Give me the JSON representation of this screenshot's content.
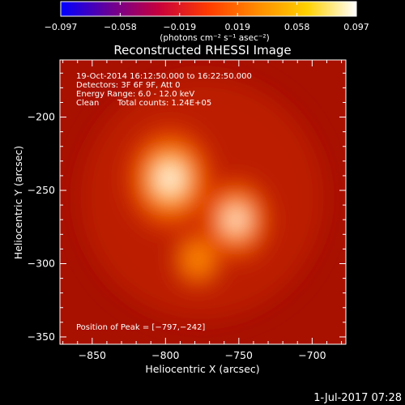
{
  "chart_data": {
    "type": "heatmap",
    "title": "Reconstructed RHESSI Image",
    "xlabel": "Heliocentric X (arcsec)",
    "ylabel": "Heliocentric Y (arcsec)",
    "xlim": [
      -872,
      -677
    ],
    "ylim": [
      -355,
      -161
    ],
    "x_ticks": [
      {
        "value": -850,
        "label": "−850"
      },
      {
        "value": -800,
        "label": "−800"
      },
      {
        "value": -750,
        "label": "−750"
      },
      {
        "value": -700,
        "label": "−700"
      }
    ],
    "y_ticks": [
      {
        "value": -200,
        "label": "−200"
      },
      {
        "value": -250,
        "label": "−250"
      },
      {
        "value": -300,
        "label": "−300"
      },
      {
        "value": -350,
        "label": "−350"
      }
    ],
    "colorbar": {
      "min": -0.097,
      "max": 0.097,
      "tick_values": [
        -0.097,
        -0.058,
        -0.019,
        0.019,
        0.058,
        0.097
      ],
      "tick_labels": [
        "−0.097",
        "−0.058",
        "−0.019",
        "0.019",
        "0.058",
        "0.097"
      ],
      "unit_label": "(photons cm⁻² s⁻¹ asec⁻²)",
      "colormap": [
        "#0000ff",
        "#6a0096",
        "#c8003c",
        "#ff3c00",
        "#ff8c00",
        "#ffd200",
        "#ffffff"
      ]
    },
    "annotations": {
      "time_range": "19-Oct-2014 16:12:50.000 to 16:22:50.000",
      "detectors": "Detectors: 3F 6F 9F, Att 0",
      "energy_range": "Energy Range: 6.0 - 12.0 keV",
      "clean": "Clean",
      "total_counts": "Total counts: 1.24E+05",
      "peak_position": "Position of Peak = [−797,−242]"
    },
    "sources": [
      {
        "x": -797,
        "y": -242,
        "peak": 1.0
      },
      {
        "x": -752,
        "y": -270,
        "peak": 0.72
      },
      {
        "x": -778,
        "y": -297,
        "peak": 0.38
      }
    ]
  },
  "footer": {
    "date": "1-Jul-2017 07:28"
  }
}
